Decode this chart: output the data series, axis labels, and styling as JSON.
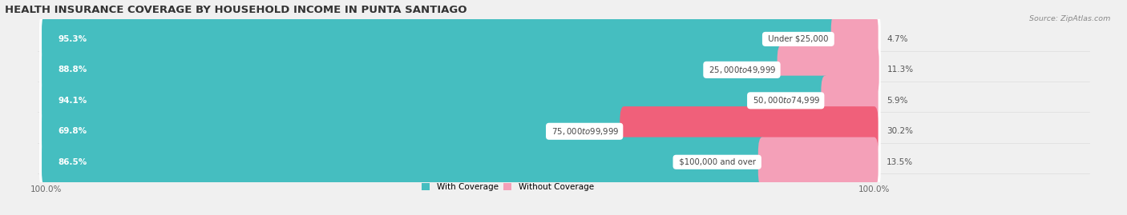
{
  "title": "HEALTH INSURANCE COVERAGE BY HOUSEHOLD INCOME IN PUNTA SANTIAGO",
  "source": "Source: ZipAtlas.com",
  "categories": [
    "Under $25,000",
    "$25,000 to $49,999",
    "$50,000 to $74,999",
    "$75,000 to $99,999",
    "$100,000 and over"
  ],
  "with_coverage": [
    95.3,
    88.8,
    94.1,
    69.8,
    86.5
  ],
  "without_coverage": [
    4.7,
    11.3,
    5.9,
    30.2,
    13.5
  ],
  "color_with": "#45BEC0",
  "color_without_strong": "#F0607A",
  "color_without_light": "#F4A0B8",
  "bar_height": 0.62,
  "background_color": "#f0f0f0",
  "title_fontsize": 9.5,
  "label_fontsize": 7.5,
  "tick_fontsize": 7.5,
  "xlim_left": -5,
  "xlim_right": 130,
  "total_bar_width": 100
}
